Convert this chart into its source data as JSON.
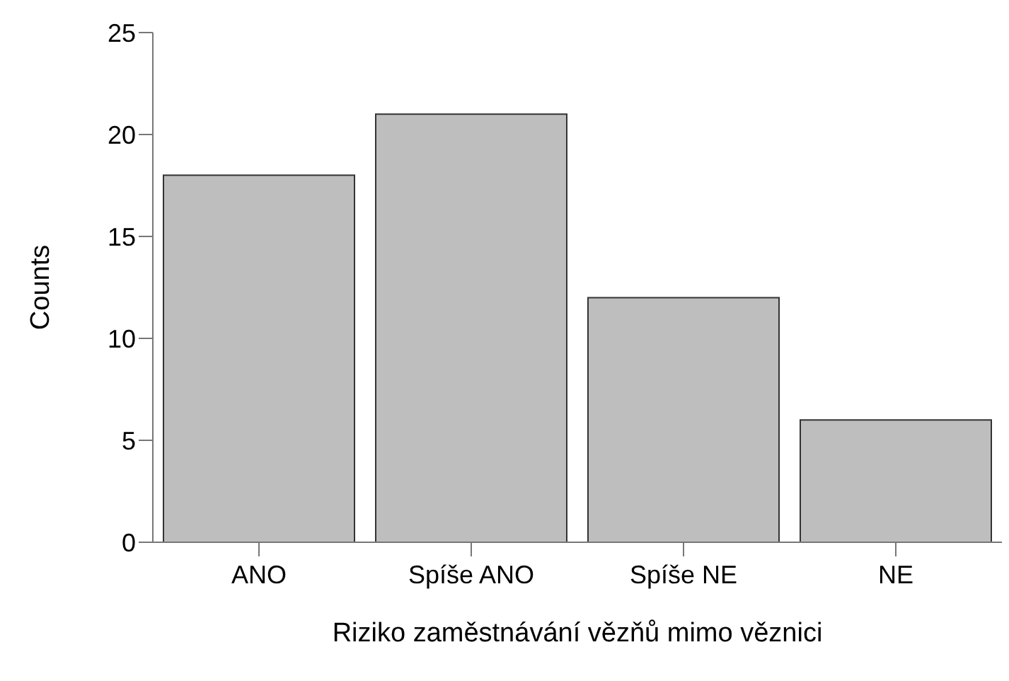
{
  "chart_data": {
    "type": "bar",
    "xlabel": "Riziko zaměstnávání vězňů mimo věznici",
    "ylabel": "Counts",
    "categories": [
      "ANO",
      "Spíše ANO",
      "Spíše NE",
      "NE"
    ],
    "values": [
      18,
      21,
      12,
      6
    ],
    "color": "#bebebe",
    "ylim": [
      0,
      25
    ],
    "yticks": [
      0,
      5,
      10,
      15,
      20,
      25
    ]
  }
}
